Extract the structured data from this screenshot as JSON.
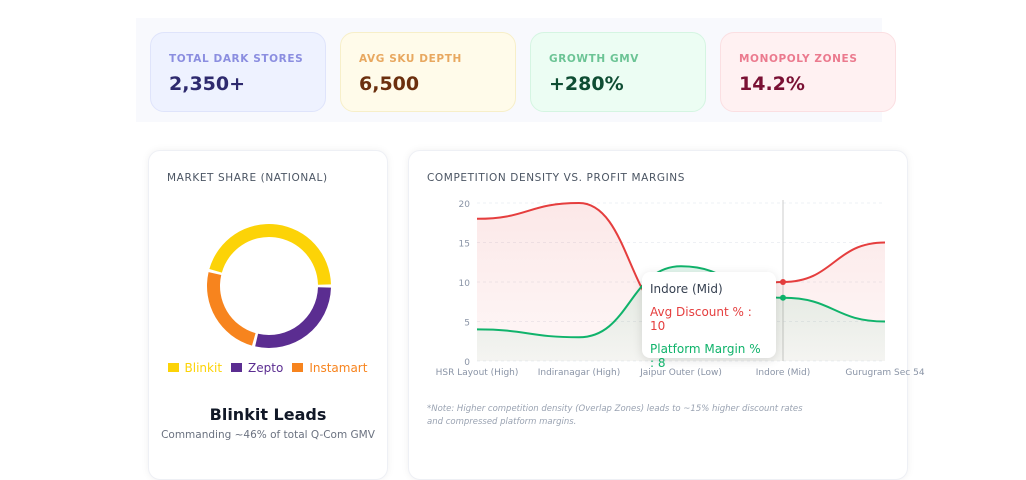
{
  "stats": [
    {
      "label": "TOTAL DARK STORES",
      "value": "2,350+",
      "bg": "#eef2ff",
      "border": "#dfe4fb",
      "label_color": "#8b8ee0",
      "value_color": "#2e2a6e"
    },
    {
      "label": "AVG SKU DEPTH",
      "value": "6,500",
      "bg": "#fffbea",
      "border": "#f7efc9",
      "label_color": "#e8a860",
      "value_color": "#6b2f0e"
    },
    {
      "label": "GROWTH GMV",
      "value": "+280%",
      "bg": "#ecfdf3",
      "border": "#d5f5e2",
      "label_color": "#6cc495",
      "value_color": "#0f4d33"
    },
    {
      "label": "MONOPOLY ZONES",
      "value": "14.2%",
      "bg": "#fff1f2",
      "border": "#fbdfe2",
      "label_color": "#eb7a8e",
      "value_color": "#7a1134"
    }
  ],
  "market": {
    "title": "MARKET SHARE (NATIONAL)",
    "headline": "Blinkit Leads",
    "subtext": "Commanding ~46% of total Q-Com GMV"
  },
  "competition": {
    "title": "COMPETITION DENSITY VS. PROFIT MARGINS",
    "note": "*Note: Higher competition density (Overlap Zones) leads to ~15% higher discount rates and compressed platform margins.",
    "tooltip": {
      "title": "Indore (Mid)",
      "line1": "Avg Discount % : 10",
      "line2": "Platform Margin % : 8"
    }
  },
  "chart_data": [
    {
      "type": "pie",
      "variant": "donut",
      "categories": [
        "Blinkit",
        "Zepto",
        "Instamart"
      ],
      "values": [
        46,
        29,
        25
      ],
      "colors": [
        "#fcd307",
        "#5b2d91",
        "#f7841e"
      ],
      "legend": "bottom"
    },
    {
      "type": "area",
      "categories": [
        "HSR Layout (High)",
        "Indiranagar (High)",
        "Jaipur Outer (Low)",
        "Indore (Mid)",
        "Gurugram Sec 54"
      ],
      "series": [
        {
          "name": "Avg Discount %",
          "values": [
            18,
            20,
            5,
            10,
            15
          ],
          "color": "#e53e3e"
        },
        {
          "name": "Platform Margin %",
          "values": [
            4,
            3,
            12,
            8,
            5
          ],
          "color": "#10b36b"
        }
      ],
      "yticks": [
        0,
        5,
        10,
        15,
        20
      ],
      "ylim": [
        0,
        20
      ],
      "grid": true,
      "active_category": "Indore (Mid)"
    }
  ]
}
